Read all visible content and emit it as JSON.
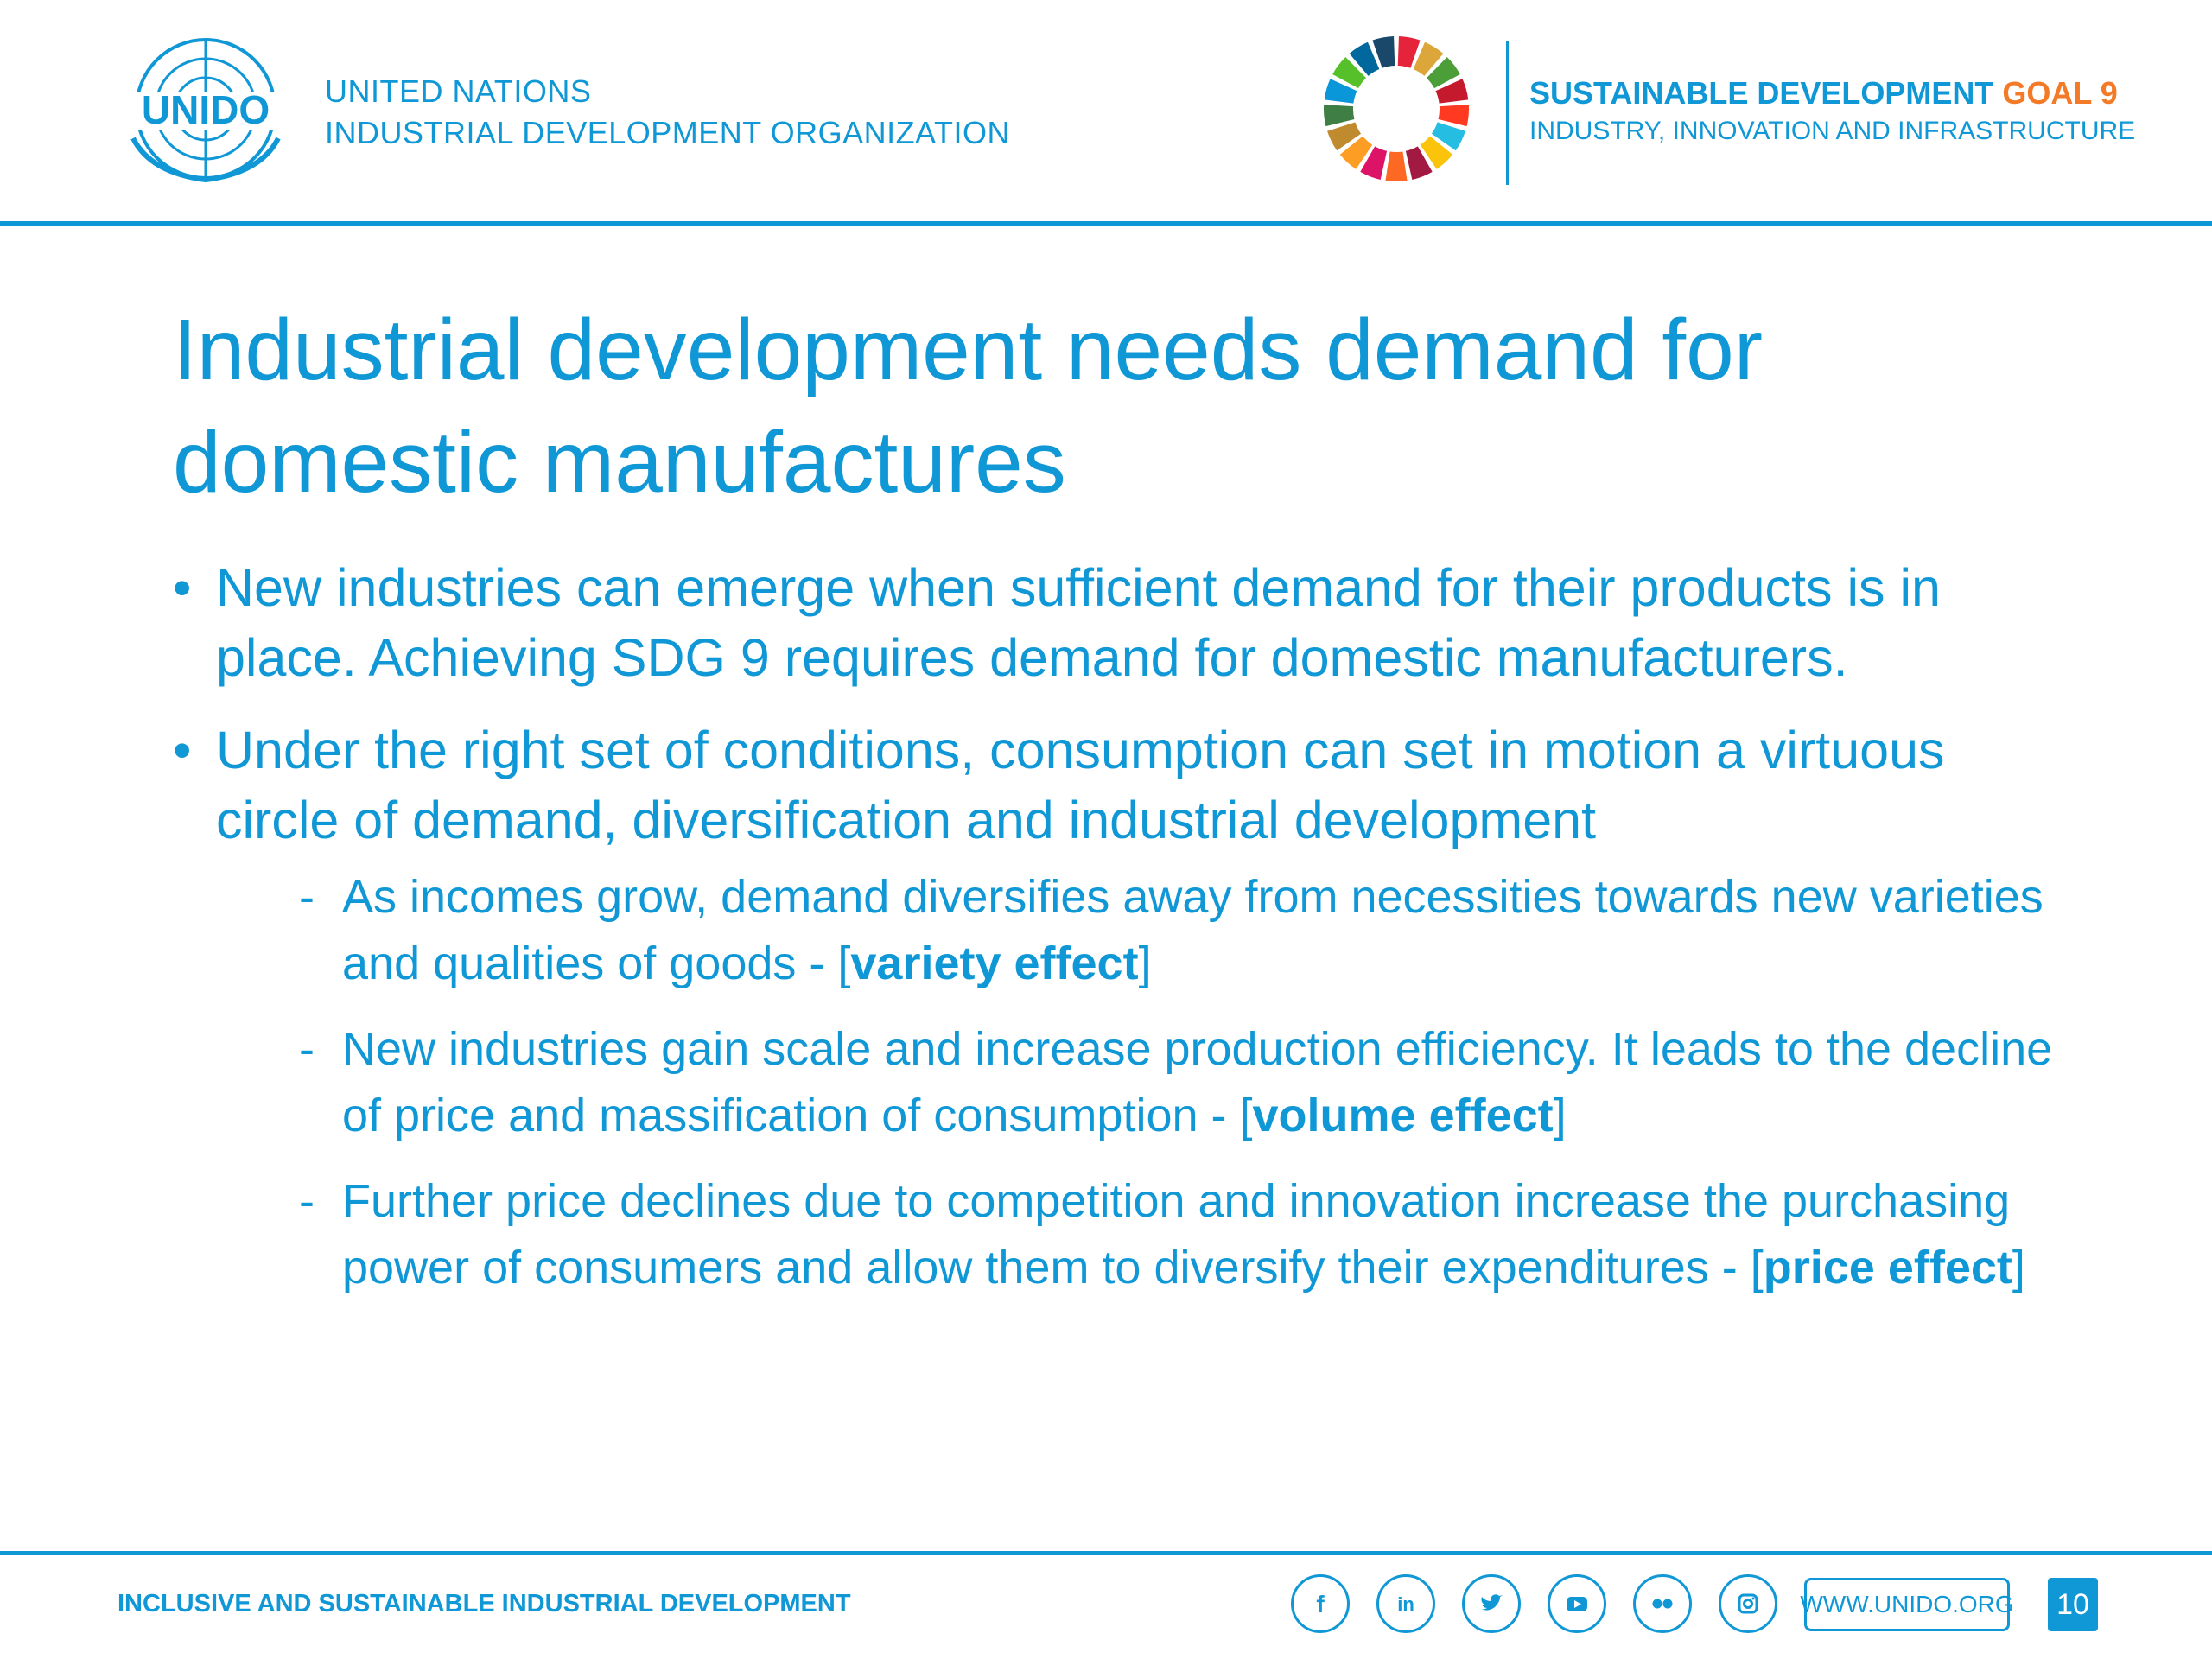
{
  "header": {
    "unido_logo_text": "UNIDO",
    "org_line1": "UNITED NATIONS",
    "org_line2": "INDUSTRIAL DEVELOPMENT ORGANIZATION",
    "sdg_title": "SUSTAINABLE DEVELOPMENT",
    "sdg_goal": "GOAL 9",
    "sdg_subtitle": "INDUSTRY, INNOVATION AND INFRASTRUCTURE"
  },
  "slide": {
    "title_line1": "Industrial development needs demand for",
    "title_line2": "domestic manufactures",
    "bullets": [
      {
        "text": "New industries can emerge when sufficient demand for their products is in place. Achieving SDG 9 requires demand for domestic manufacturers."
      },
      {
        "text": "Under the right set of conditions, consumption can set in motion a virtuous circle of demand, diversification and industrial development"
      }
    ],
    "subbullets": [
      {
        "text": "As incomes grow, demand diversifies away from necessities towards new varieties and qualities of goods - [",
        "bold": "variety effect",
        "close": "]"
      },
      {
        "text": "New industries gain scale and increase production efficiency. It leads to the decline of price and massification of consumption - [",
        "bold": "volume effect",
        "close": "]"
      },
      {
        "text": "Further price declines due to competition and innovation increase the purchasing power of consumers and allow them to diversify their expenditures - [",
        "bold": "price effect",
        "close": "]"
      }
    ]
  },
  "footer": {
    "tagline": "INCLUSIVE AND SUSTAINABLE INDUSTRIAL DEVELOPMENT",
    "social_icons": [
      "facebook-icon",
      "linkedin-icon",
      "twitter-icon",
      "youtube-icon",
      "flickr-icon",
      "instagram-icon"
    ],
    "website": "WWW.UNIDO.ORG",
    "page_number": "10"
  },
  "colors": {
    "brand_blue": "#0f97d6",
    "goal_orange": "#f37a26"
  }
}
